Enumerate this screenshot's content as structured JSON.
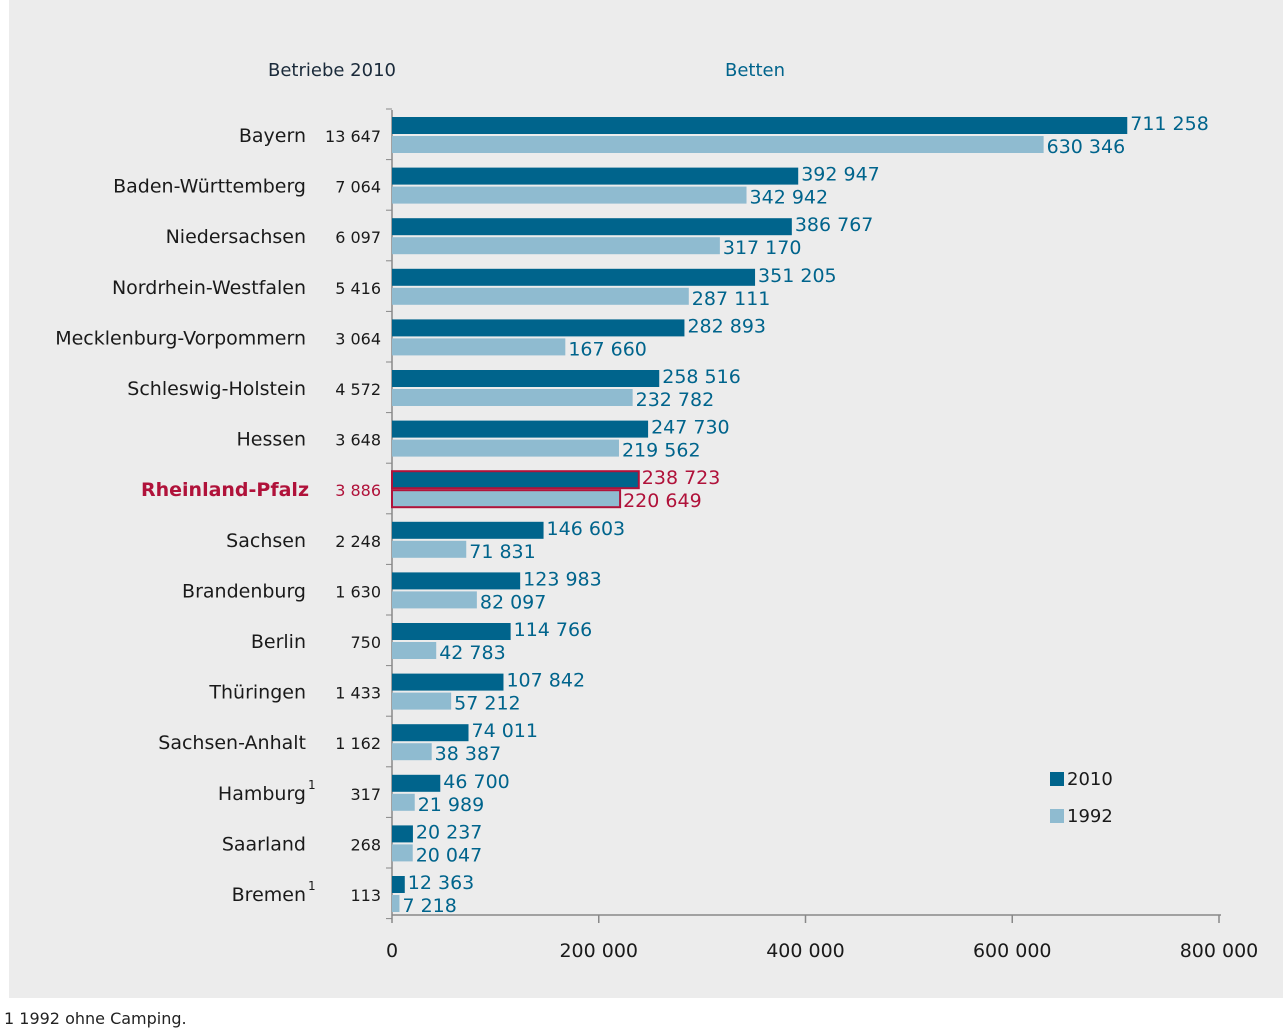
{
  "chart_data": {
    "type": "bar",
    "orientation": "horizontal",
    "header_left": "Betriebe 2010",
    "header_right": "Betten",
    "categories": [
      "Bayern",
      "Baden-Württemberg",
      "Niedersachsen",
      "Nordrhein-Westfalen",
      "Mecklenburg-Vorpommern",
      "Schleswig-Holstein",
      "Hessen",
      "Rheinland-Pfalz",
      "Sachsen",
      "Brandenburg",
      "Berlin",
      "Thüringen",
      "Sachsen-Anhalt",
      "Hamburg",
      "Saarland",
      "Bremen"
    ],
    "footnote_marks": [
      "",
      "",
      "",
      "",
      "",
      "",
      "",
      "",
      "",
      "",
      "",
      "",
      "",
      "1",
      "",
      "1"
    ],
    "betriebe_2010": [
      "13 647",
      "7 064",
      "6 097",
      "5 416",
      "3 064",
      "4 572",
      "3 648",
      "3 886",
      "2 248",
      "1 630",
      "750",
      "1 433",
      "1 162",
      "317",
      "268",
      "113"
    ],
    "highlight": "Rheinland-Pfalz",
    "series": [
      {
        "name": "2010",
        "color": "#00648c",
        "values": [
          711258,
          392947,
          386767,
          351205,
          282893,
          258516,
          247730,
          238723,
          146603,
          123983,
          114766,
          107842,
          74011,
          46700,
          20237,
          12363
        ],
        "labels": [
          "711 258",
          "392 947",
          "386 767",
          "351 205",
          "282 893",
          "258 516",
          "247 730",
          "238 723",
          "146 603",
          "123 983",
          "114 766",
          "107 842",
          "74 011",
          "46 700",
          "20 237",
          "12 363"
        ]
      },
      {
        "name": "1992",
        "color": "#8fbbd0",
        "values": [
          630346,
          342942,
          317170,
          287111,
          167660,
          232782,
          219562,
          220649,
          71831,
          82097,
          42783,
          57212,
          38387,
          21989,
          20047,
          7218
        ],
        "labels": [
          "630 346",
          "342 942",
          "317 170",
          "287 111",
          "167 660",
          "232 782",
          "219 562",
          "220 649",
          "71 831",
          "82 097",
          "42 783",
          "57 212",
          "38 387",
          "21 989",
          "20 047",
          "7 218"
        ]
      }
    ],
    "xlim": [
      0,
      800000
    ],
    "xticks": [
      0,
      200000,
      400000,
      600000,
      800000
    ],
    "xtick_labels": [
      "0",
      "200 000",
      "400 000",
      "600 000",
      "800 000"
    ],
    "legend_position": "lower-right",
    "grid": false,
    "colors": {
      "label": "#00648c",
      "text": "#1a1a1a",
      "highlight": "#b0123a",
      "axis": "#888888"
    }
  },
  "footnote": "1 1992 ohne Camping."
}
